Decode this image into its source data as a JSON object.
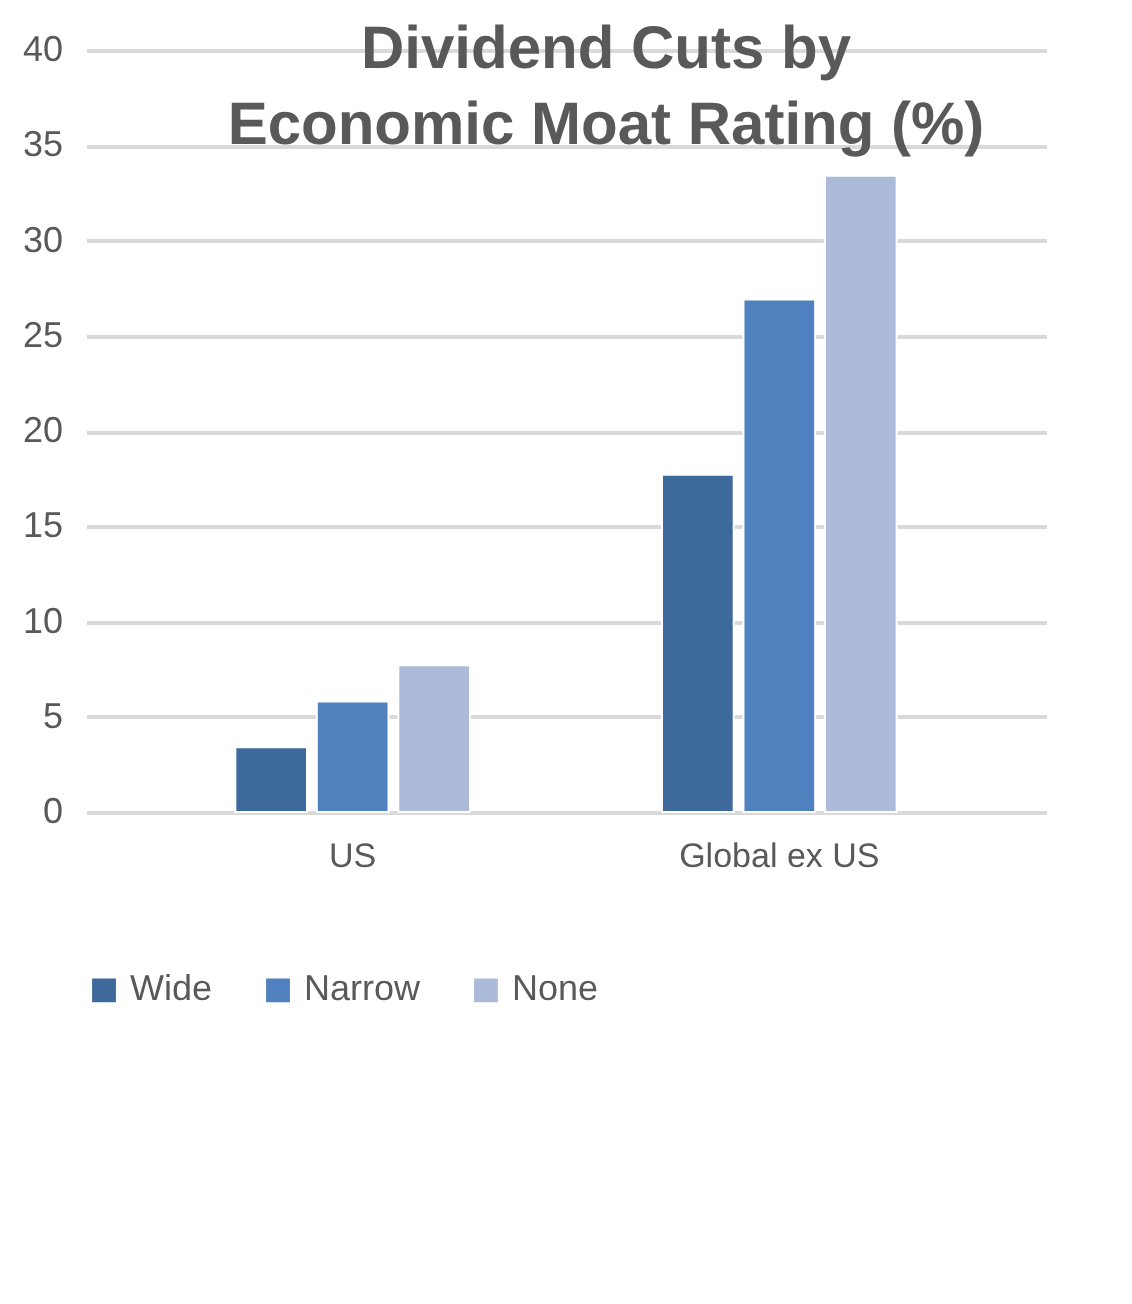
{
  "chart_data": {
    "type": "bar",
    "title": "Dividend Cuts by Economic Moat Rating (%)",
    "categories": [
      "US",
      "Global ex US"
    ],
    "series": [
      {
        "name": "Wide",
        "color": "#3e6a9b",
        "values": [
          3.4,
          17.7
        ]
      },
      {
        "name": "Narrow",
        "color": "#4e81bd",
        "values": [
          5.8,
          26.9
        ]
      },
      {
        "name": "None",
        "color": "#abbbd9",
        "values": [
          7.7,
          33.4
        ]
      }
    ],
    "ylim": [
      0,
      40
    ],
    "yticks": [
      0,
      5,
      10,
      15,
      20,
      25,
      30,
      35,
      40
    ],
    "grid": "y",
    "legend": "bottom"
  }
}
